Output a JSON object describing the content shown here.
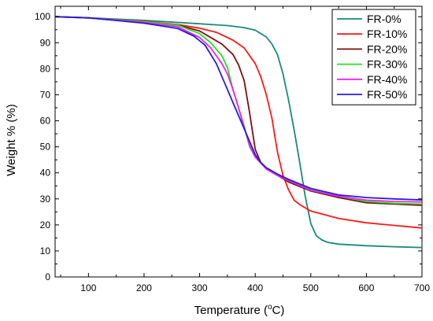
{
  "chart_data": {
    "type": "line",
    "title": "",
    "xlabel": "Temperature (",
    "xlabel_unit_sup": "o",
    "xlabel_unit": "C)",
    "ylabel": "Weight % (%)",
    "xlim": [
      40,
      700
    ],
    "ylim": [
      0,
      104
    ],
    "xticks": [
      100,
      200,
      300,
      400,
      500,
      600,
      700
    ],
    "yticks": [
      0,
      10,
      20,
      30,
      40,
      50,
      60,
      70,
      80,
      90,
      100
    ],
    "grid": false,
    "legend_position": "top-right",
    "series": [
      {
        "name": "FR-0%",
        "color": "#1a8a7a",
        "x": [
          40,
          100,
          200,
          300,
          350,
          380,
          400,
          420,
          430,
          440,
          450,
          460,
          470,
          480,
          490,
          500,
          510,
          520,
          530,
          550,
          600,
          650,
          700
        ],
        "y": [
          100,
          99.6,
          98.6,
          97.3,
          96.6,
          95.8,
          94.8,
          92.2,
          89.5,
          85.5,
          78,
          68,
          56.5,
          44,
          31,
          20.5,
          15.8,
          14.2,
          13.3,
          12.6,
          12.0,
          11.6,
          11.3
        ]
      },
      {
        "name": "FR-10%",
        "color": "#ff1a1a",
        "x": [
          40,
          100,
          200,
          260,
          300,
          330,
          360,
          380,
          400,
          410,
          420,
          430,
          440,
          450,
          460,
          470,
          480,
          500,
          550,
          600,
          650,
          700
        ],
        "y": [
          100,
          99.5,
          98.2,
          97.0,
          95.6,
          94.0,
          91.0,
          88.0,
          82.0,
          77.0,
          70.0,
          61.0,
          48.0,
          39.0,
          33.5,
          29.5,
          27.8,
          25.3,
          22.5,
          20.8,
          19.8,
          18.8
        ]
      },
      {
        "name": "FR-20%",
        "color": "#7a1010",
        "x": [
          40,
          100,
          200,
          260,
          300,
          320,
          340,
          360,
          370,
          380,
          390,
          400,
          410,
          420,
          440,
          460,
          500,
          550,
          600,
          650,
          700
        ],
        "y": [
          100,
          99.5,
          97.8,
          96.8,
          94.5,
          92.0,
          89.5,
          85.5,
          81.5,
          75.5,
          63.0,
          49.0,
          44.0,
          41.5,
          39.0,
          36.5,
          33.0,
          30.5,
          28.5,
          28.0,
          27.5
        ]
      },
      {
        "name": "FR-30%",
        "color": "#22e022",
        "x": [
          40,
          100,
          200,
          260,
          300,
          320,
          340,
          350,
          360,
          370,
          380,
          390,
          400,
          420,
          440,
          460,
          500,
          550,
          600,
          650,
          700
        ],
        "y": [
          100,
          99.6,
          98.0,
          96.8,
          93.5,
          90.0,
          85.0,
          80.5,
          72.0,
          65.0,
          58.0,
          50.0,
          46.0,
          41.5,
          39.0,
          37.0,
          33.5,
          31.0,
          29.0,
          28.3,
          28.0
        ]
      },
      {
        "name": "FR-40%",
        "color": "#ee22ee",
        "x": [
          40,
          100,
          200,
          260,
          300,
          320,
          340,
          350,
          360,
          370,
          380,
          390,
          400,
          420,
          440,
          460,
          500,
          550,
          600,
          650,
          700
        ],
        "y": [
          100,
          99.6,
          97.8,
          96.2,
          92.0,
          88.0,
          82.0,
          78.0,
          72.0,
          65.0,
          57.5,
          50.5,
          46.0,
          41.5,
          39.0,
          37.0,
          33.3,
          31.0,
          29.5,
          29.0,
          28.8
        ]
      },
      {
        "name": "FR-50%",
        "color": "#2a1adc",
        "x": [
          40,
          100,
          200,
          260,
          290,
          310,
          330,
          350,
          360,
          370,
          380,
          390,
          400,
          410,
          420,
          440,
          460,
          500,
          550,
          600,
          650,
          700
        ],
        "y": [
          100,
          99.6,
          97.5,
          95.5,
          92.5,
          89.0,
          82.0,
          72.0,
          67.0,
          62.0,
          57.0,
          52.0,
          47.0,
          44.0,
          42.0,
          39.5,
          37.5,
          34.0,
          31.5,
          30.5,
          30.0,
          29.6
        ]
      }
    ]
  }
}
